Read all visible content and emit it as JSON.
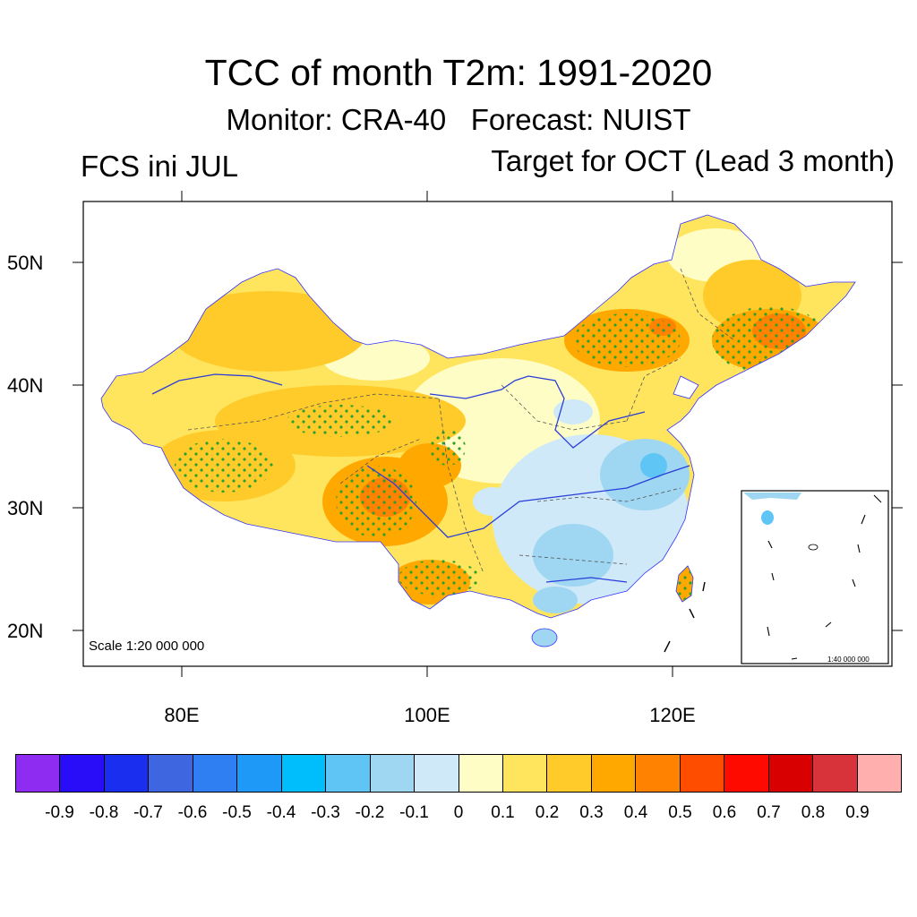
{
  "title": "TCC of month T2m: 1991-2020",
  "subtitle": "Monitor: CRA-40   Forecast: NUIST",
  "left_label": "FCS ini JUL",
  "right_label": "Target for OCT (Lead 3 month)",
  "map": {
    "scale_label": "Scale 1:20 000 000",
    "inset_scale_label": "1:40 000 000",
    "lat_ticks": [
      "50N",
      "40N",
      "30N",
      "20N"
    ],
    "lon_ticks": [
      "80E",
      "100E",
      "120E"
    ]
  },
  "colorbar": {
    "colors": [
      "#8e2cf2",
      "#2a0df8",
      "#1a2ef0",
      "#3d66e0",
      "#2f7ef2",
      "#1f99f7",
      "#00bdfb",
      "#5ec5f4",
      "#9fd7f2",
      "#cfe9f8",
      "#fffdc6",
      "#ffe45e",
      "#ffcb2a",
      "#ffa900",
      "#ff8200",
      "#ff4d00",
      "#ff0a00",
      "#d80000",
      "#d8323a",
      "#ffb0ae"
    ],
    "labels": [
      "-0.9",
      "-0.8",
      "-0.7",
      "-0.6",
      "-0.5",
      "-0.4",
      "-0.3",
      "-0.2",
      "-0.1",
      "0",
      "0.1",
      "0.2",
      "0.3",
      "0.4",
      "0.5",
      "0.6",
      "0.7",
      "0.8",
      "0.9"
    ]
  }
}
